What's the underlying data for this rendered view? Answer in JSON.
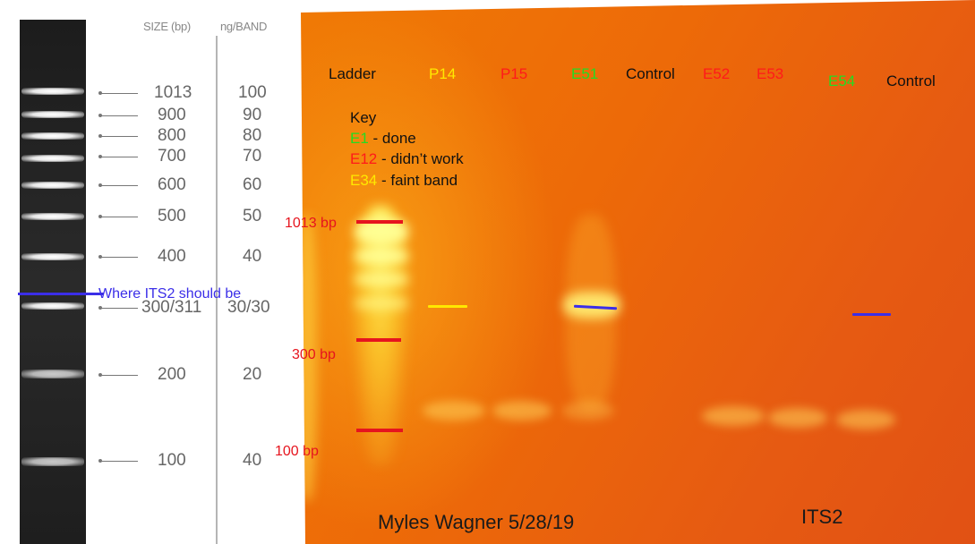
{
  "reference": {
    "size_header": "SIZE (bp)",
    "ng_header": "ng/BAND",
    "rows": [
      {
        "size": "1013",
        "ng": "100"
      },
      {
        "size": "900",
        "ng": "90"
      },
      {
        "size": "800",
        "ng": "80"
      },
      {
        "size": "700",
        "ng": "70"
      },
      {
        "size": "600",
        "ng": "60"
      },
      {
        "size": "500",
        "ng": "50"
      },
      {
        "size": "400",
        "ng": "40"
      },
      {
        "size": "300/311",
        "ng": "30/30"
      },
      {
        "size": "200",
        "ng": "20"
      },
      {
        "size": "100",
        "ng": "40"
      }
    ],
    "its2_note": "Where ITS2 should be"
  },
  "gel": {
    "lanes": [
      {
        "label": "Ladder",
        "color": "#111111"
      },
      {
        "label": "P14",
        "color": "#ffe800"
      },
      {
        "label": "P15",
        "color": "#ff1a1a"
      },
      {
        "label": "E51",
        "color": "#22dd22"
      },
      {
        "label": "Control",
        "color": "#111111"
      },
      {
        "label": "E52",
        "color": "#ff1a1a"
      },
      {
        "label": "E53",
        "color": "#ff1a1a"
      },
      {
        "label": "E54",
        "color": "#22dd22"
      },
      {
        "label": "Control",
        "color": "#111111"
      }
    ],
    "key": {
      "title": "Key",
      "items": [
        {
          "code": "E1",
          "text": " - done",
          "color": "#22dd22"
        },
        {
          "code": "E12",
          "text": " - didn’t work",
          "color": "#ff1a1a"
        },
        {
          "code": "E34",
          "text": " - faint band",
          "color": "#ffe800"
        }
      ]
    },
    "bp_markers": [
      "1013 bp",
      "300 bp",
      "100 bp"
    ],
    "author_note": "Myles Wagner 5/28/19",
    "target": "ITS2"
  },
  "colors": {
    "marker_red": "#e6141e",
    "its2_blue": "#3b2ee8",
    "faint_yellow": "#ffe800"
  }
}
